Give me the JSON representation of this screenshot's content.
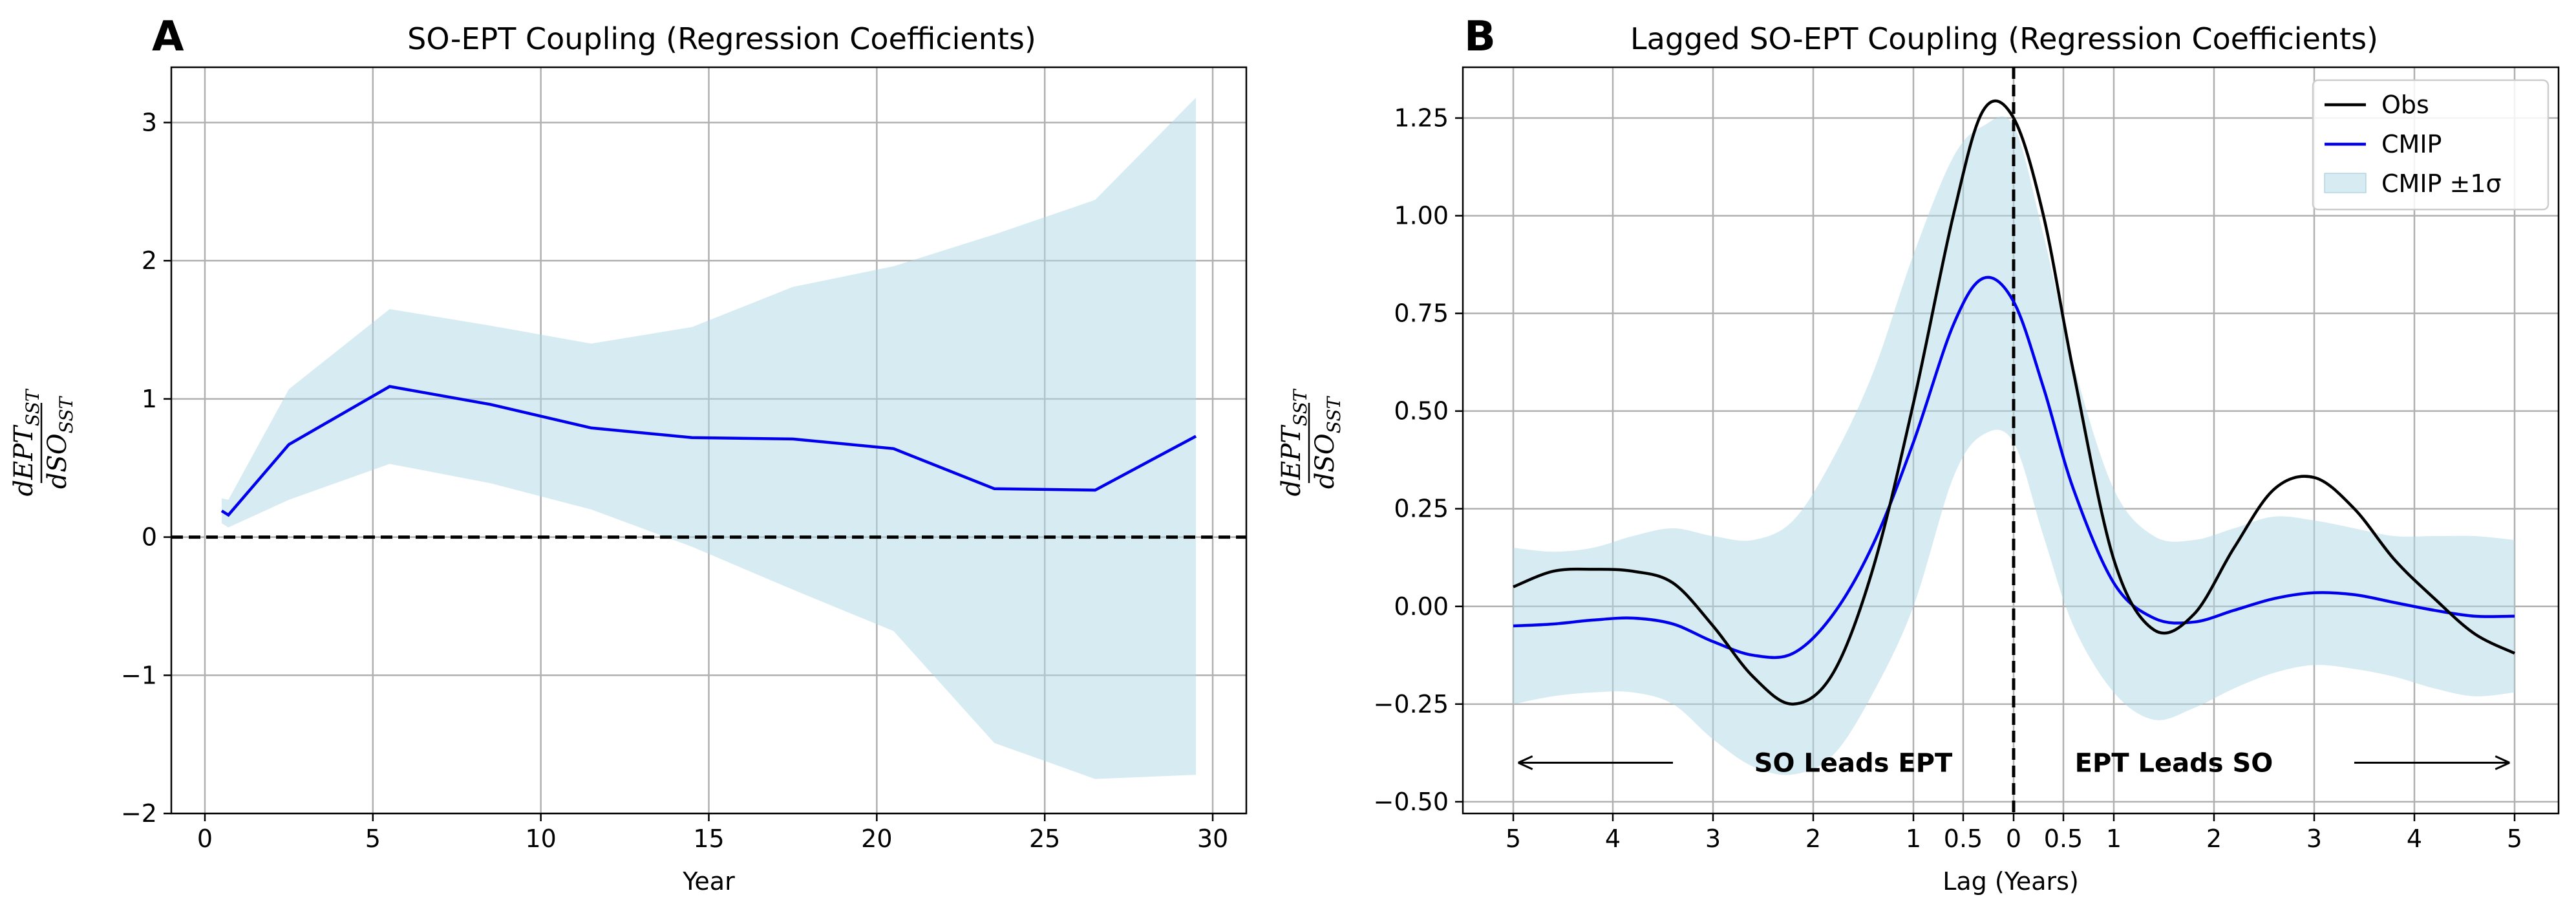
{
  "colors": {
    "obs": "#000000",
    "cmip": "#0000ee",
    "band": "#add8e6",
    "grid": "#b0b0b0"
  },
  "chart_data": [
    {
      "panel_label": "A",
      "type": "line",
      "title": "SO-EPT Coupling (Regression Coefficients)",
      "xlabel": "Year",
      "ylabel": "dEPT_SST / dSO_SST",
      "xlim": [
        -1,
        31
      ],
      "ylim": [
        -2,
        3.4
      ],
      "xticks": [
        0,
        5,
        10,
        15,
        20,
        25,
        30
      ],
      "yticks": [
        -2,
        -1,
        0,
        1,
        2,
        3
      ],
      "ytick_labels": [
        "−2",
        "−1",
        "0",
        "1",
        "2",
        "3"
      ],
      "grid": true,
      "zero_line": "dashed",
      "series": [
        {
          "x": [
            0.5,
            0.7,
            2.5,
            5.5,
            8.5,
            11.5,
            14.5,
            17.5,
            20.5,
            23.5,
            26.5,
            29.5
          ],
          "values": [
            0.19,
            0.16,
            0.67,
            1.09,
            0.96,
            0.79,
            0.72,
            0.71,
            0.64,
            0.35,
            0.34,
            0.73
          ]
        }
      ],
      "band": {
        "x": [
          0.5,
          0.7,
          2.5,
          5.5,
          8.5,
          11.5,
          14.5,
          17.5,
          20.5,
          23.5,
          26.5,
          29.5
        ],
        "upper": [
          0.28,
          0.27,
          1.07,
          1.65,
          1.53,
          1.4,
          1.52,
          1.81,
          1.96,
          2.19,
          2.44,
          3.18
        ],
        "lower": [
          0.1,
          0.07,
          0.27,
          0.53,
          0.39,
          0.2,
          -0.07,
          -0.38,
          -0.68,
          -1.49,
          -1.75,
          -1.72
        ]
      }
    },
    {
      "panel_label": "B",
      "type": "line",
      "title": "Lagged SO-EPT Coupling (Regression Coefficients)",
      "xlabel": "Lag (Years)",
      "ylabel": "dEPT_SST / dSO_SST",
      "xlim": [
        -5.5,
        5.5
      ],
      "ylim": [
        -0.53,
        1.38
      ],
      "xticks": [
        -5,
        -4,
        -3,
        -2,
        -1,
        -0.5,
        0,
        0.5,
        1,
        2,
        3,
        4,
        5
      ],
      "xtick_labels": [
        "5",
        "4",
        "3",
        "2",
        "1",
        "0.5",
        "0",
        "0.5",
        "1",
        "2",
        "3",
        "4",
        "5"
      ],
      "yticks": [
        -0.5,
        -0.25,
        0,
        0.25,
        0.5,
        0.75,
        1.0,
        1.25
      ],
      "ytick_labels": [
        "−0.50",
        "−0.25",
        "0.00",
        "0.25",
        "0.50",
        "0.75",
        "1.00",
        "1.25"
      ],
      "grid": true,
      "vline": 0,
      "legend_position": "top-right",
      "legend": [
        "Obs",
        "CMIP",
        "CMIP ±1σ"
      ],
      "annotations": {
        "left": "SO Leads EPT",
        "right": "EPT Leads SO"
      },
      "series": [
        {
          "name": "Obs",
          "x": [
            -5.0,
            -4.6,
            -4.2,
            -3.8,
            -3.4,
            -3.0,
            -2.6,
            -2.2,
            -1.8,
            -1.4,
            -1.0,
            -0.6,
            -0.3,
            0.0,
            0.3,
            0.6,
            1.0,
            1.4,
            1.8,
            2.2,
            2.6,
            3.0,
            3.4,
            3.8,
            4.2,
            4.6,
            5.0
          ],
          "values": [
            0.05,
            0.09,
            0.095,
            0.09,
            0.06,
            -0.05,
            -0.18,
            -0.25,
            -0.17,
            0.1,
            0.52,
            1.0,
            1.27,
            1.25,
            1.0,
            0.6,
            0.12,
            -0.06,
            -0.02,
            0.15,
            0.3,
            0.33,
            0.25,
            0.12,
            0.02,
            -0.07,
            -0.12
          ]
        },
        {
          "name": "CMIP",
          "x": [
            -5.0,
            -4.6,
            -4.2,
            -3.8,
            -3.4,
            -3.0,
            -2.6,
            -2.2,
            -1.8,
            -1.4,
            -1.0,
            -0.6,
            -0.3,
            0.0,
            0.3,
            0.6,
            1.0,
            1.4,
            1.8,
            2.2,
            2.6,
            3.0,
            3.4,
            3.8,
            4.2,
            4.6,
            5.0
          ],
          "values": [
            -0.05,
            -0.045,
            -0.035,
            -0.03,
            -0.045,
            -0.09,
            -0.125,
            -0.12,
            -0.02,
            0.16,
            0.42,
            0.72,
            0.84,
            0.78,
            0.56,
            0.3,
            0.06,
            -0.03,
            -0.04,
            -0.01,
            0.02,
            0.035,
            0.03,
            0.01,
            -0.01,
            -0.025,
            -0.025
          ]
        }
      ],
      "band": {
        "name": "CMIP ±1σ",
        "x": [
          -5.0,
          -4.6,
          -4.2,
          -3.8,
          -3.4,
          -3.0,
          -2.6,
          -2.2,
          -1.8,
          -1.4,
          -1.0,
          -0.6,
          -0.3,
          0.0,
          0.3,
          0.6,
          1.0,
          1.4,
          1.8,
          2.2,
          2.6,
          3.0,
          3.4,
          3.8,
          4.2,
          4.6,
          5.0
        ],
        "upper": [
          0.15,
          0.14,
          0.15,
          0.18,
          0.2,
          0.18,
          0.17,
          0.22,
          0.38,
          0.6,
          0.9,
          1.15,
          1.23,
          1.23,
          0.95,
          0.62,
          0.3,
          0.18,
          0.17,
          0.2,
          0.23,
          0.22,
          0.2,
          0.18,
          0.18,
          0.18,
          0.17
        ],
        "lower": [
          -0.25,
          -0.23,
          -0.22,
          -0.22,
          -0.25,
          -0.34,
          -0.41,
          -0.43,
          -0.38,
          -0.22,
          0.0,
          0.33,
          0.44,
          0.42,
          0.18,
          -0.05,
          -0.22,
          -0.29,
          -0.26,
          -0.21,
          -0.17,
          -0.15,
          -0.16,
          -0.18,
          -0.21,
          -0.23,
          -0.22
        ]
      }
    }
  ]
}
